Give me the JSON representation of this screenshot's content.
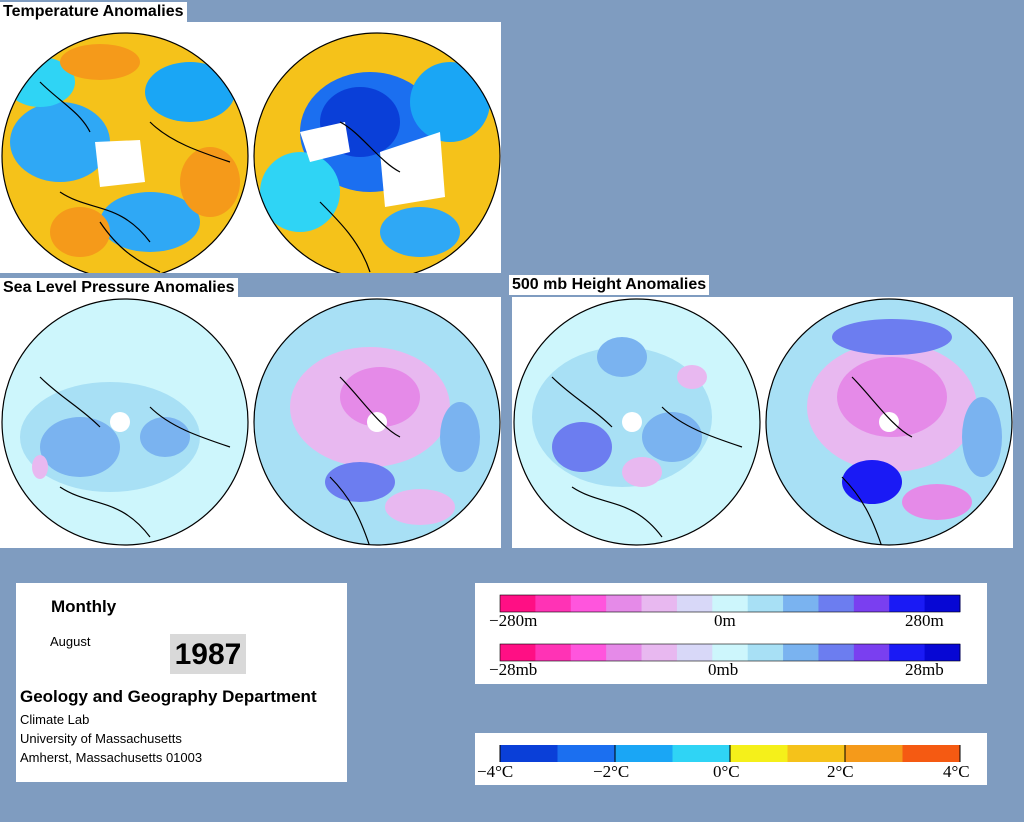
{
  "panels": {
    "temperature": {
      "title": "Temperature Anomalies"
    },
    "slp": {
      "title": "Sea Level Pressure Anomalies"
    },
    "height500": {
      "title": "500 mb Height Anomalies"
    }
  },
  "info": {
    "frequency": "Monthly",
    "month": "August",
    "year": "1987",
    "department": "Geology and Geography Department",
    "address_lines": [
      "Climate Lab",
      "University of Massachusetts",
      "Amherst, Massachusetts 01003"
    ]
  },
  "scales": {
    "height": {
      "min": "−280m",
      "mid": "0m",
      "max": "280m"
    },
    "pressure": {
      "min": "−28mb",
      "mid": "0mb",
      "max": "28mb"
    },
    "temperature": {
      "labels": [
        "−4°C",
        "−2°C",
        "0°C",
        "2°C",
        "4°C"
      ]
    }
  },
  "colors": {
    "background": "#7f9cc0",
    "anomaly_scale": [
      "#ff0f84",
      "#ff33b5",
      "#ff55dd",
      "#e58ae8",
      "#e8b8f0",
      "#d8d8f8",
      "#cdf6fc",
      "#a8e0f5",
      "#7ab3f0",
      "#6c7df0",
      "#7a3ff0",
      "#1a1af5",
      "#0707d4"
    ],
    "temperature_scale": [
      "#0a3fd8",
      "#1b6ff0",
      "#1aa6f5",
      "#2fd4f5",
      "#f5f01a",
      "#f5c21a",
      "#f59a1a",
      "#f55a12"
    ]
  }
}
